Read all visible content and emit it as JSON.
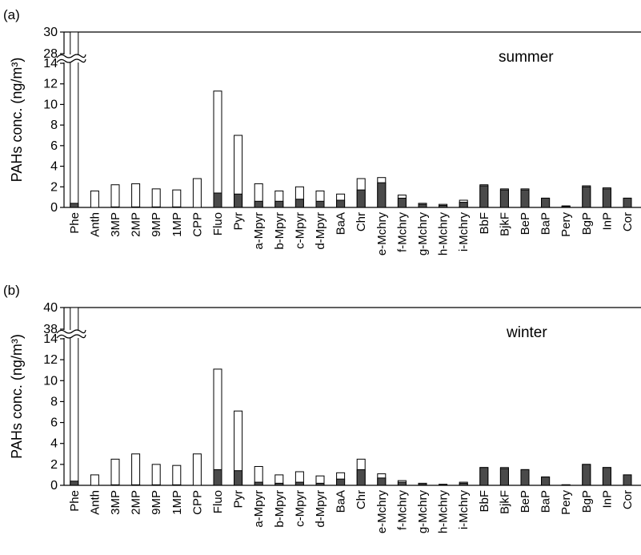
{
  "ylabel": "PAHs conc. (ng/m³)",
  "categories": [
    "Phe",
    "Anth",
    "3MP",
    "2MP",
    "9MP",
    "1MP",
    "CPP",
    "Fluo",
    "Pyr",
    "a-Mpyr",
    "b-Mpyr",
    "c-Mpyr",
    "d-Mpyr",
    "BaA",
    "Chr",
    "e-Mchry",
    "f-Mchry",
    "g-Mchry",
    "h-Mchry",
    "i-Mchry",
    "BbF",
    "BjkF",
    "BeP",
    "BaP",
    "Pery",
    "BgP",
    "InP",
    "Cor"
  ],
  "colors": {
    "total_bar": "#ffffff",
    "dark_part": "#4a4a4a",
    "outline": "#000000"
  },
  "chart_data": [
    {
      "panel_label": "(a)",
      "season": "summer",
      "type": "bar",
      "axis_break": {
        "between": [
          14,
          28
        ],
        "symbol": "≈"
      },
      "yticks": [
        0,
        2,
        4,
        6,
        8,
        10,
        12,
        14,
        28,
        30
      ],
      "ylim": [
        0,
        30
      ],
      "series": [
        {
          "values": [
            30,
            1.6,
            2.2,
            2.3,
            1.8,
            1.7,
            2.8,
            11.3,
            7.0,
            2.3,
            1.6,
            2.0,
            1.6,
            1.3,
            2.8,
            2.9,
            1.2,
            0.4,
            0.3,
            0.7,
            2.2,
            1.8,
            1.8,
            0.9,
            0.15,
            2.1,
            1.9,
            0.9
          ]
        },
        {
          "values": [
            0.4,
            0.0,
            0.05,
            0.05,
            0.05,
            0.05,
            0.0,
            1.4,
            1.3,
            0.6,
            0.6,
            0.8,
            0.6,
            0.7,
            1.7,
            2.4,
            0.9,
            0.3,
            0.2,
            0.5,
            2.1,
            1.7,
            1.7,
            0.9,
            0.1,
            2.0,
            1.8,
            0.9
          ]
        }
      ]
    },
    {
      "panel_label": "(b)",
      "season": "winter",
      "type": "bar",
      "axis_break": {
        "between": [
          14,
          38
        ],
        "symbol": "≈"
      },
      "yticks": [
        0,
        2,
        4,
        6,
        8,
        10,
        12,
        14,
        38,
        40
      ],
      "ylim": [
        0,
        40
      ],
      "series": [
        {
          "values": [
            40,
            1.0,
            2.5,
            3.0,
            2.0,
            1.9,
            3.0,
            11.1,
            7.1,
            1.8,
            1.0,
            1.3,
            0.9,
            1.2,
            2.5,
            1.1,
            0.45,
            0.2,
            0.1,
            0.3,
            1.7,
            1.7,
            1.5,
            0.8,
            0.05,
            2.0,
            1.7,
            1.0
          ]
        },
        {
          "values": [
            0.4,
            0.0,
            0.05,
            0.05,
            0.05,
            0.05,
            0.0,
            1.5,
            1.4,
            0.3,
            0.2,
            0.3,
            0.2,
            0.6,
            1.5,
            0.7,
            0.3,
            0.1,
            0.05,
            0.2,
            1.7,
            1.6,
            1.5,
            0.8,
            0.05,
            2.0,
            1.7,
            1.0
          ]
        }
      ]
    }
  ]
}
